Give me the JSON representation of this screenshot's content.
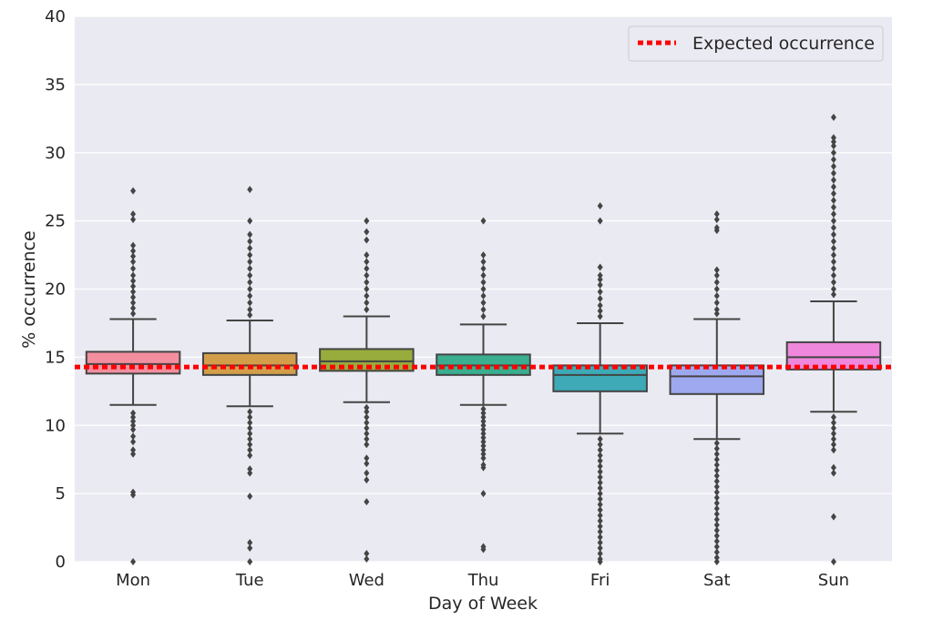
{
  "chart_data": {
    "type": "box",
    "title": "",
    "xlabel": "Day of Week",
    "ylabel": "% occurrence",
    "ylim": [
      0,
      40
    ],
    "yticks": [
      0,
      5,
      10,
      15,
      20,
      25,
      30,
      35,
      40
    ],
    "grid": true,
    "legend": {
      "position": "top-right",
      "entries": [
        "Expected occurrence"
      ]
    },
    "expected_occurrence": {
      "label": "Expected occurrence",
      "value": 14.28,
      "color": "#ff0000",
      "style": "dotted"
    },
    "categories": [
      "Mon",
      "Tue",
      "Wed",
      "Thu",
      "Fri",
      "Sat",
      "Sun"
    ],
    "colors": [
      "#f28e9e",
      "#d39e4a",
      "#97ac3c",
      "#3aae8f",
      "#3eaab8",
      "#9ea8ee",
      "#ef87dc"
    ],
    "boxes": [
      {
        "day": "Mon",
        "whisker_low": 11.5,
        "q1": 13.8,
        "median": 14.5,
        "q3": 15.4,
        "whisker_high": 17.8,
        "outliers": [
          27.2,
          25.5,
          25.1,
          23.2,
          22.8,
          22.4,
          22.0,
          21.5,
          21.0,
          20.6,
          20.2,
          19.8,
          19.4,
          19.0,
          18.6,
          18.2,
          10.9,
          10.6,
          10.3,
          10.0,
          9.7,
          9.2,
          8.8,
          8.2,
          7.9,
          5.1,
          4.9,
          0.0
        ]
      },
      {
        "day": "Tue",
        "whisker_low": 11.4,
        "q1": 13.7,
        "median": 14.4,
        "q3": 15.3,
        "whisker_high": 17.7,
        "outliers": [
          27.3,
          25.0,
          24.0,
          23.5,
          23.0,
          22.5,
          22.0,
          21.5,
          21.0,
          20.5,
          20.0,
          19.5,
          19.0,
          18.5,
          18.1,
          11.0,
          10.6,
          10.2,
          9.8,
          9.4,
          9.0,
          8.6,
          8.2,
          7.8,
          6.8,
          6.5,
          4.8,
          1.4,
          1.0,
          0.0
        ]
      },
      {
        "day": "Wed",
        "whisker_low": 11.7,
        "q1": 14.0,
        "median": 14.7,
        "q3": 15.6,
        "whisker_high": 18.0,
        "outliers": [
          25.0,
          24.2,
          23.6,
          22.5,
          22.0,
          21.5,
          21.0,
          20.5,
          20.0,
          19.5,
          19.0,
          18.5,
          11.3,
          11.0,
          10.6,
          10.2,
          9.8,
          9.4,
          9.0,
          8.6,
          7.6,
          7.2,
          6.5,
          6.0,
          4.4,
          0.6,
          0.2
        ]
      },
      {
        "day": "Thu",
        "whisker_low": 11.5,
        "q1": 13.7,
        "median": 14.4,
        "q3": 15.2,
        "whisker_high": 17.4,
        "outliers": [
          25.0,
          22.5,
          22.0,
          21.5,
          21.0,
          20.5,
          20.0,
          19.5,
          19.0,
          18.5,
          18.0,
          11.2,
          10.9,
          10.6,
          10.3,
          10.0,
          9.7,
          9.4,
          9.1,
          8.8,
          8.5,
          8.2,
          7.9,
          7.6,
          7.1,
          6.9,
          5.0,
          1.1,
          0.9
        ]
      },
      {
        "day": "Fri",
        "whisker_low": 9.4,
        "q1": 12.5,
        "median": 13.7,
        "q3": 14.4,
        "whisker_high": 17.5,
        "outliers": [
          26.1,
          25.0,
          21.6,
          21.0,
          20.7,
          20.3,
          19.8,
          19.3,
          18.8,
          18.4,
          18.0,
          9.0,
          8.6,
          8.2,
          7.8,
          7.4,
          7.0,
          6.6,
          6.2,
          5.8,
          5.4,
          5.0,
          4.6,
          4.2,
          3.8,
          3.4,
          3.0,
          2.6,
          2.2,
          1.8,
          1.4,
          1.0,
          0.6,
          0.2,
          0.0
        ]
      },
      {
        "day": "Sat",
        "whisker_low": 9.0,
        "q1": 12.3,
        "median": 13.6,
        "q3": 14.4,
        "whisker_high": 17.8,
        "outliers": [
          25.5,
          25.1,
          24.5,
          24.3,
          21.4,
          21.0,
          20.5,
          20.0,
          19.5,
          19.0,
          18.5,
          18.2,
          8.7,
          8.3,
          7.9,
          7.5,
          7.1,
          6.7,
          6.3,
          5.9,
          5.5,
          5.1,
          4.7,
          4.3,
          3.9,
          3.5,
          3.1,
          2.7,
          2.3,
          1.9,
          1.5,
          1.1,
          0.7,
          0.3,
          0.0
        ]
      },
      {
        "day": "Sun",
        "whisker_low": 11.0,
        "q1": 14.1,
        "median": 15.0,
        "q3": 16.1,
        "whisker_high": 19.1,
        "outliers": [
          32.6,
          31.1,
          30.8,
          30.5,
          30.0,
          29.5,
          29.0,
          28.5,
          28.0,
          27.5,
          27.0,
          26.5,
          26.0,
          25.5,
          25.0,
          24.5,
          24.0,
          23.5,
          23.0,
          22.5,
          22.0,
          21.5,
          21.0,
          20.5,
          20.0,
          19.6,
          10.6,
          10.2,
          9.8,
          9.4,
          9.0,
          8.6,
          8.2,
          6.9,
          6.5,
          3.3,
          0.0
        ]
      }
    ]
  }
}
